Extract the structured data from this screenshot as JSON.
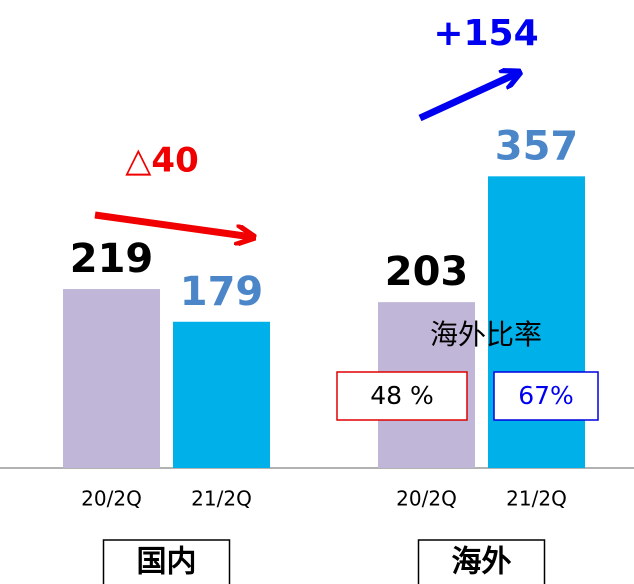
{
  "chart_data": {
    "type": "bar",
    "categories": [
      "国内",
      "海外"
    ],
    "series": [
      {
        "name": "20/2Q",
        "color": "#c0b6d8",
        "label_color": "#000000",
        "values": [
          219,
          203
        ]
      },
      {
        "name": "21/2Q",
        "color": "#00b0e8",
        "label_color": "#4a86c8",
        "values": [
          179,
          357
        ]
      }
    ],
    "annotations": {
      "domestic_change": "△40",
      "overseas_change": "+154",
      "overseas_ratio_title": "海外比率",
      "overseas_ratio_prev": "48 %",
      "overseas_ratio_curr": "67%"
    }
  }
}
